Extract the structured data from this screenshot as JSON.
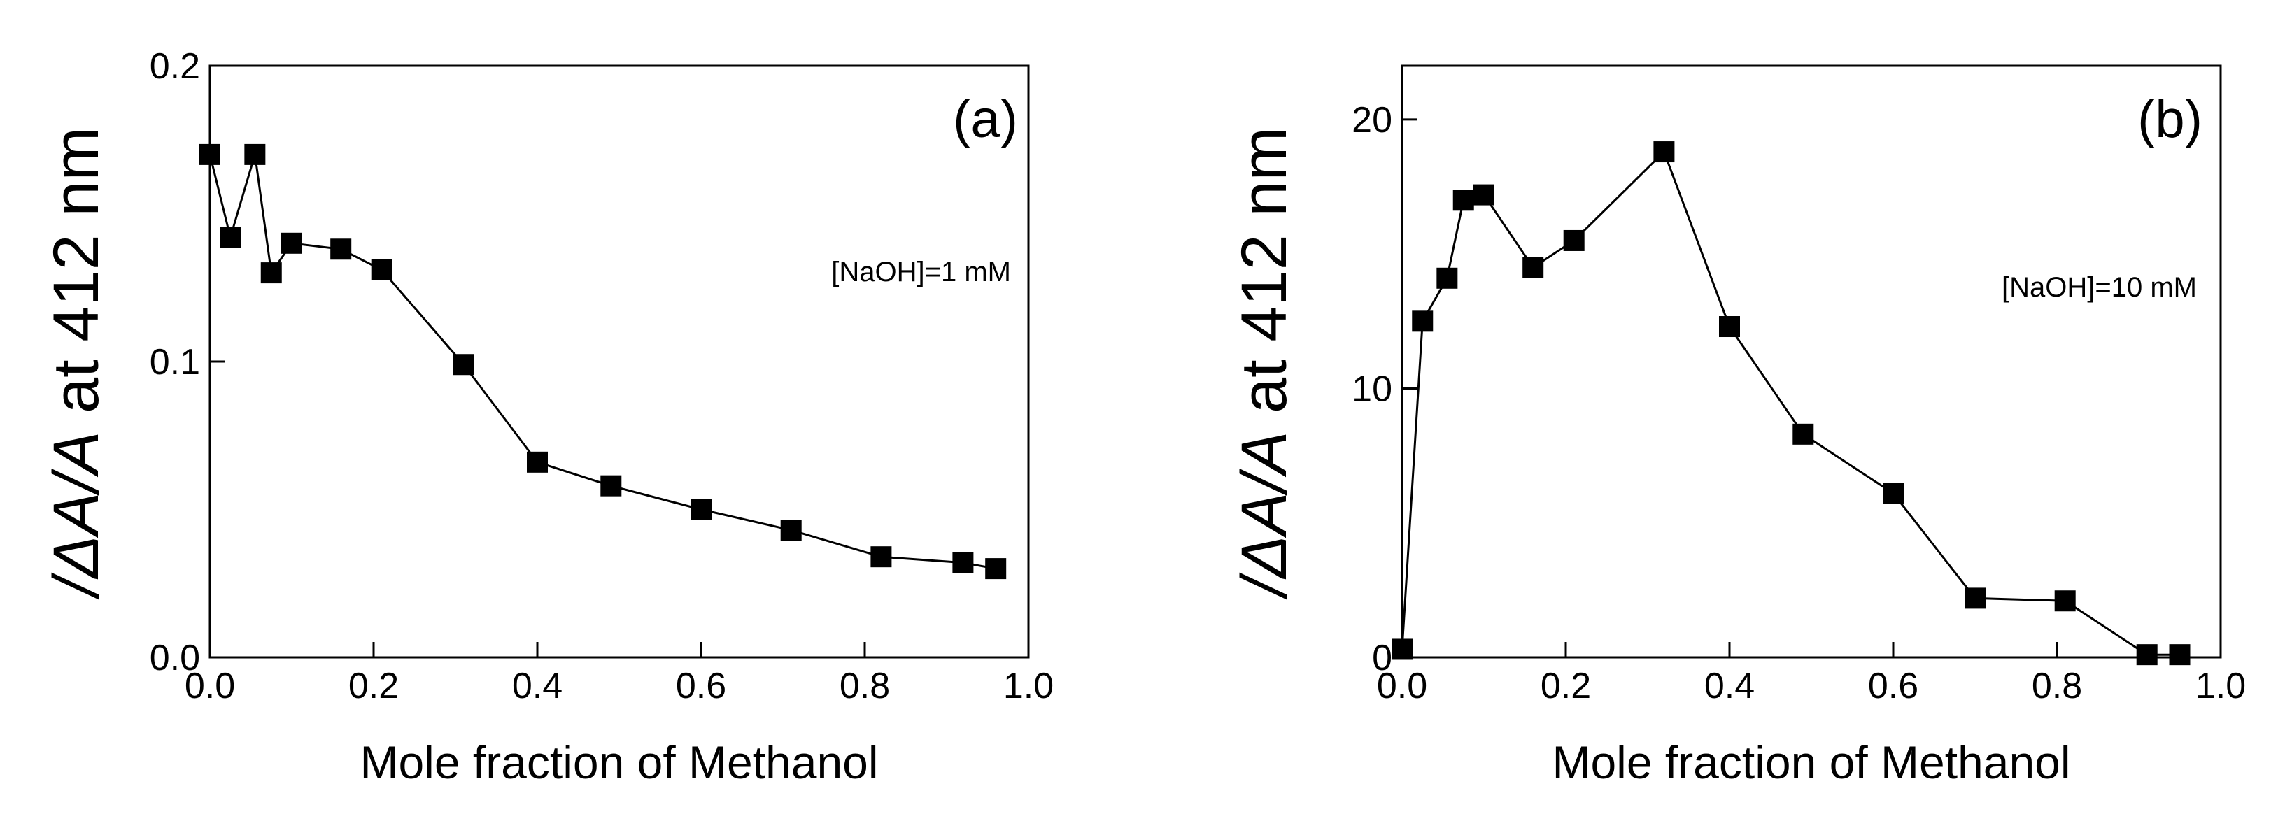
{
  "chart_data": [
    {
      "type": "line",
      "panel_label": "(a)",
      "annotation": "[NaOH]=1 mM",
      "xlabel": "Mole fraction of Methanol",
      "ylabel_parts": [
        "/",
        "Δ",
        "A",
        "/",
        "A",
        " at 412 nm"
      ],
      "xlim": [
        0.0,
        1.0
      ],
      "ylim": [
        0.0,
        0.2
      ],
      "xticks": [
        0.0,
        0.2,
        0.4,
        0.6,
        0.8,
        1.0
      ],
      "xtick_labels": [
        "0.0",
        "0.2",
        "0.4",
        "0.6",
        "0.8",
        "1.0"
      ],
      "yticks": [
        0.0,
        0.1,
        0.2
      ],
      "ytick_labels": [
        "0.0",
        "0.1",
        "0.2"
      ],
      "grid": false,
      "marker": "square",
      "series": [
        {
          "name": "[NaOH]=1 mM",
          "x": [
            0.0,
            0.025,
            0.055,
            0.075,
            0.1,
            0.16,
            0.21,
            0.31,
            0.4,
            0.49,
            0.6,
            0.71,
            0.82,
            0.92,
            0.96
          ],
          "y": [
            0.17,
            0.142,
            0.17,
            0.13,
            0.14,
            0.138,
            0.131,
            0.099,
            0.066,
            0.058,
            0.05,
            0.043,
            0.034,
            0.032,
            0.03
          ]
        }
      ]
    },
    {
      "type": "line",
      "panel_label": "(b)",
      "annotation": "[NaOH]=10 mM",
      "xlabel": "Mole fraction of Methanol",
      "ylabel_parts": [
        "/",
        "Δ",
        "A",
        "/",
        "A",
        " at 412 nm"
      ],
      "xlim": [
        0.0,
        1.0
      ],
      "ylim": [
        0,
        22
      ],
      "xticks": [
        0.0,
        0.2,
        0.4,
        0.6,
        0.8,
        1.0
      ],
      "xtick_labels": [
        "0.0",
        "0.2",
        "0.4",
        "0.6",
        "0.8",
        "1.0"
      ],
      "yticks": [
        0,
        10,
        20
      ],
      "ytick_labels": [
        "0",
        "10",
        "20"
      ],
      "grid": false,
      "marker": "square",
      "series": [
        {
          "name": "[NaOH]=10 mM",
          "x": [
            0.0,
            0.025,
            0.055,
            0.075,
            0.1,
            0.16,
            0.21,
            0.32,
            0.4,
            0.49,
            0.6,
            0.7,
            0.81,
            0.91,
            0.95
          ],
          "y": [
            0.3,
            12.5,
            14.1,
            17.0,
            17.2,
            14.5,
            15.5,
            18.8,
            12.3,
            8.3,
            6.1,
            2.2,
            2.1,
            0.1,
            0.1
          ]
        }
      ]
    }
  ]
}
